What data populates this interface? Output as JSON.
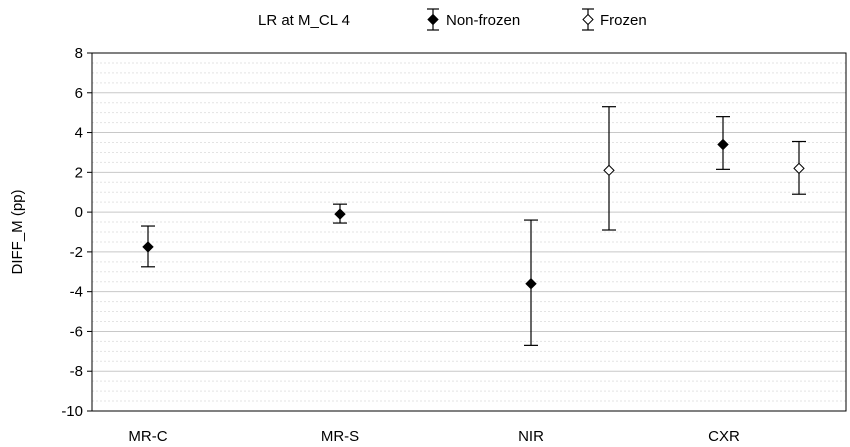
{
  "chart_data": {
    "type": "scatter",
    "title": "LR at M_CL 4",
    "xlabel": "",
    "ylabel": "DIFF_M (pp)",
    "ylim": [
      -10,
      8
    ],
    "yticks": [
      8,
      6,
      4,
      2,
      0,
      -2,
      -4,
      -6,
      -8,
      -10
    ],
    "categories": [
      "MR-C",
      "MR-S",
      "NIR",
      "CXR"
    ],
    "grid": true,
    "legend_position": "top",
    "series": [
      {
        "name": "Non-frozen",
        "marker": "filled-diamond",
        "color": "#000000",
        "points": [
          {
            "category": "MR-C",
            "value": -1.75,
            "lower": -2.75,
            "upper": -0.7
          },
          {
            "category": "MR-S",
            "value": -0.1,
            "lower": -0.55,
            "upper": 0.4
          },
          {
            "category": "NIR",
            "value": -3.6,
            "lower": -6.7,
            "upper": -0.4
          },
          {
            "category": "CXR",
            "value": 3.4,
            "lower": 2.15,
            "upper": 4.8
          }
        ]
      },
      {
        "name": "Frozen",
        "marker": "open-diamond",
        "color": "#000000",
        "points": [
          {
            "category": "NIR",
            "value": 2.1,
            "lower": -0.9,
            "upper": 5.3
          },
          {
            "category": "CXR",
            "value": 2.2,
            "lower": 0.9,
            "upper": 3.55
          }
        ]
      }
    ]
  }
}
